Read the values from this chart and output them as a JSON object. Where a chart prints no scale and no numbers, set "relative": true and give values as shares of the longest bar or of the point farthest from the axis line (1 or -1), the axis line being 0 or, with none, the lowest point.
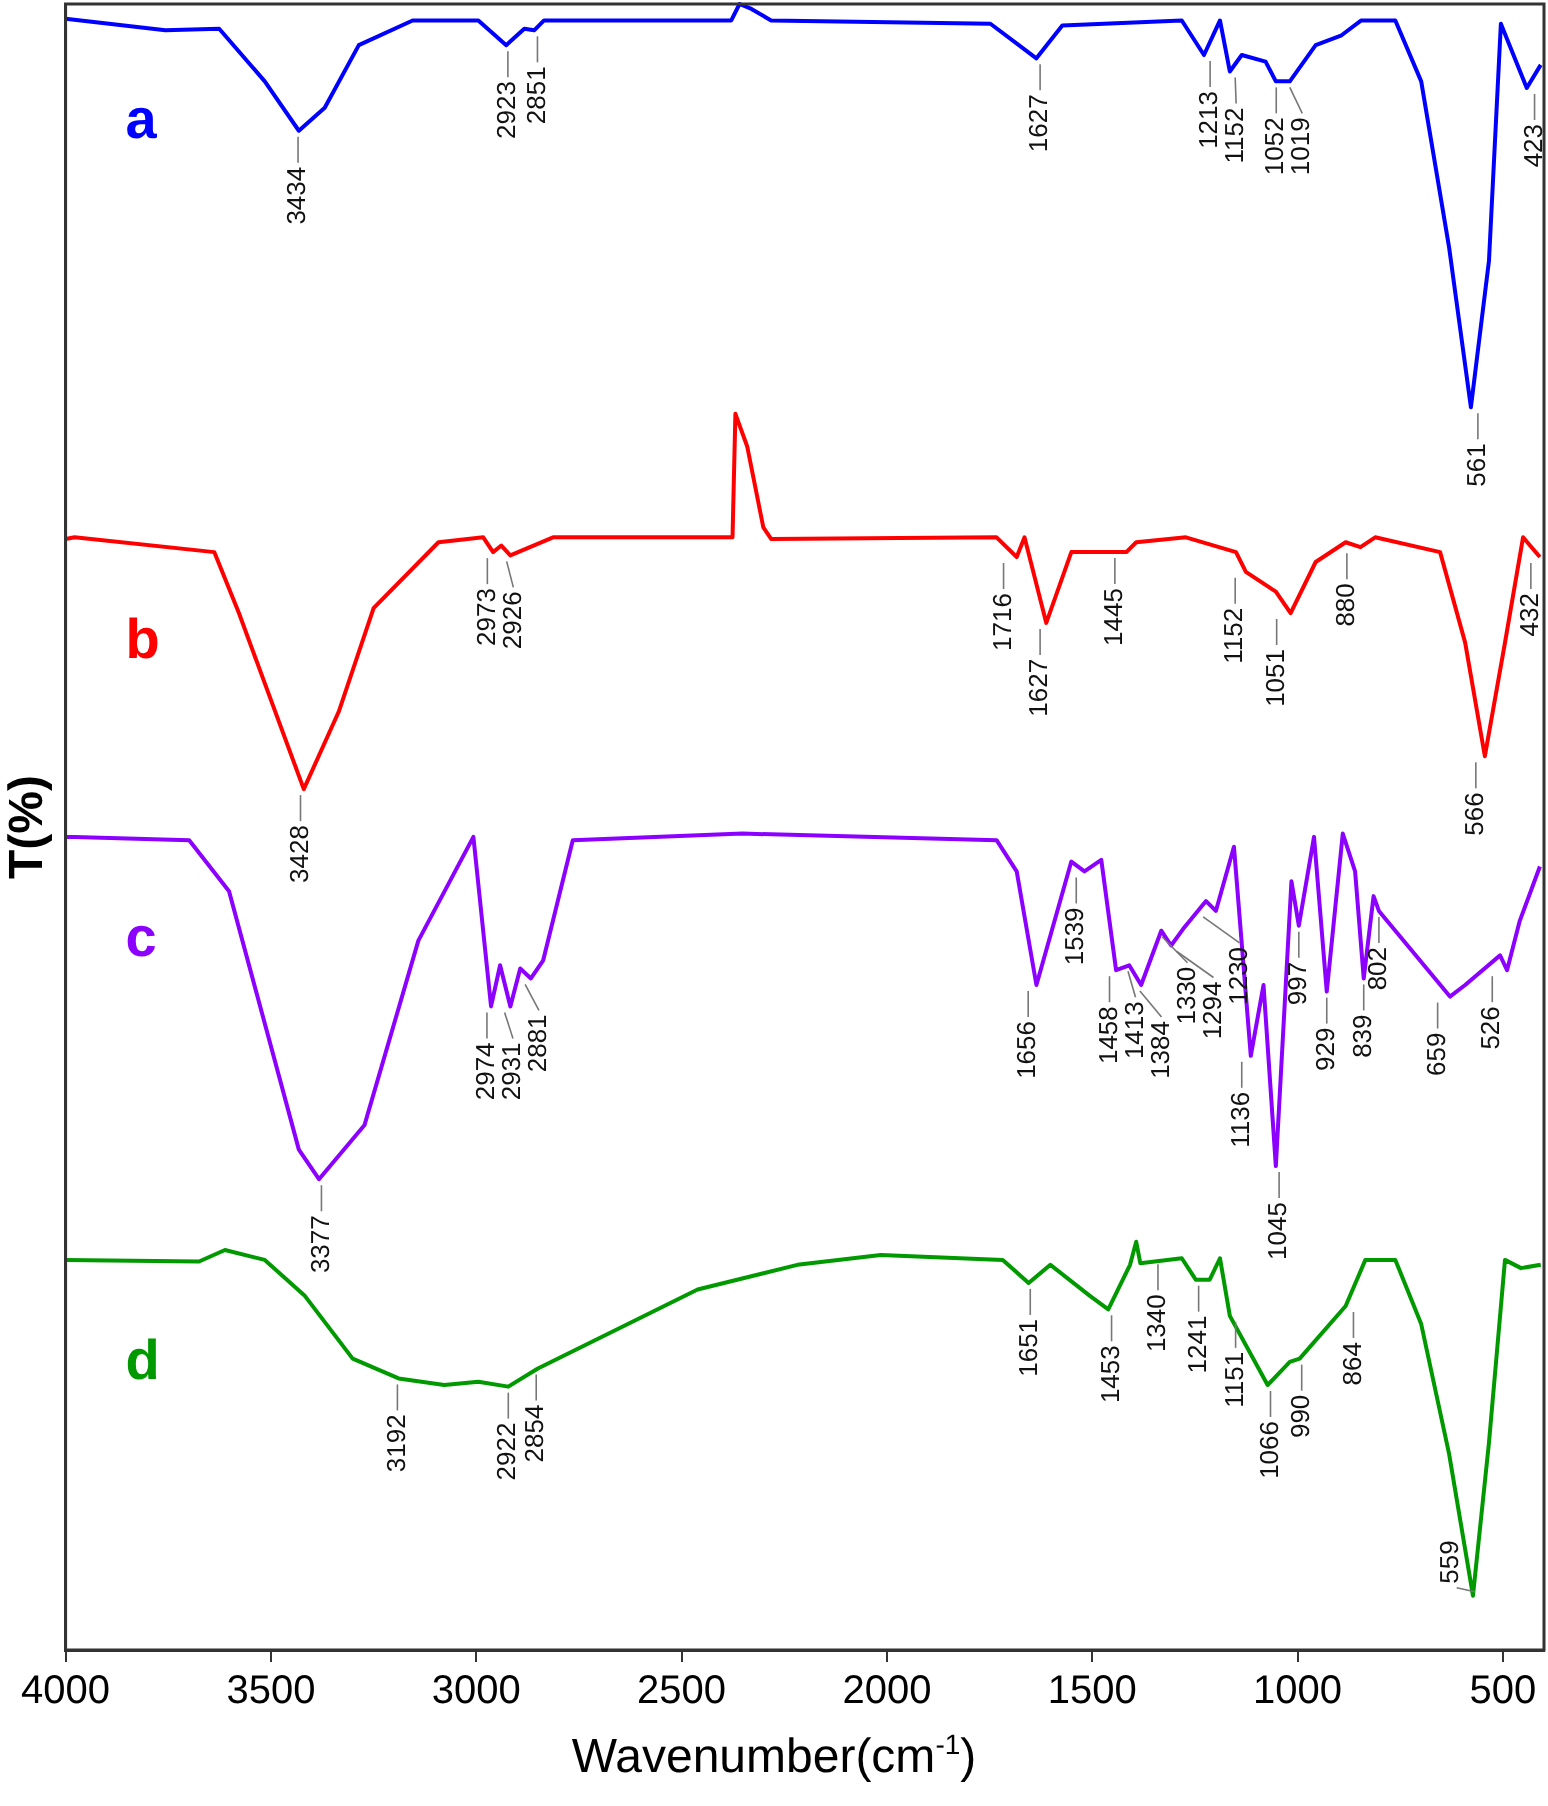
{
  "chart_data": {
    "type": "line",
    "relative": true,
    "xlabel": "Wavenumber(cm$^{-1}$)",
    "ylabel": "T(%)",
    "xlim": [
      4000,
      400
    ],
    "xticks": [
      4000,
      3500,
      3000,
      2500,
      2000,
      1500,
      1000,
      500
    ],
    "grid": false,
    "legend": false,
    "series": [
      {
        "name": "a",
        "color": "#0000ff",
        "x": [
          4000,
          3757,
          3626,
          3515,
          3432,
          3369,
          3286,
          3155,
          2995,
          2927,
          2883,
          2859,
          2835,
          2379,
          2359,
          2330,
          2282,
          1748,
          1636,
          1573,
          1282,
          1228,
          1189,
          1165,
          1136,
          1078,
          1053,
          1019,
          956,
          893,
          845,
          762,
          699,
          631,
          578,
          534,
          505,
          442,
          408
        ],
        "values": [
          0.991,
          0.984,
          0.985,
          0.953,
          0.923,
          0.937,
          0.975,
          0.99,
          0.99,
          0.975,
          0.985,
          0.984,
          0.99,
          0.99,
          1,
          0.997,
          0.99,
          0.988,
          0.967,
          0.987,
          0.99,
          0.969,
          0.99,
          0.959,
          0.969,
          0.965,
          0.953,
          0.953,
          0.975,
          0.981,
          0.99,
          0.99,
          0.953,
          0.852,
          0.755,
          0.844,
          0.988,
          0.949,
          0.963
        ]
      },
      {
        "name": "b",
        "color": "#ff0000",
        "x": [
          4000,
          3978,
          3638,
          3578,
          3420,
          3335,
          3250,
          3092,
          2983,
          2959,
          2939,
          2917,
          2813,
          2376,
          2369,
          2340,
          2301,
          2282,
          1733,
          1684,
          1665,
          1612,
          1551,
          1417,
          1393,
          1272,
          1150,
          1126,
          1053,
          1017,
          956,
          883,
          847,
          811,
          653,
          592,
          544,
          495,
          451,
          410
        ],
        "values": [
          0.675,
          0.676,
          0.667,
          0.63,
          0.523,
          0.57,
          0.633,
          0.673,
          0.676,
          0.667,
          0.671,
          0.665,
          0.676,
          0.676,
          0.751,
          0.731,
          0.682,
          0.675,
          0.676,
          0.664,
          0.676,
          0.624,
          0.667,
          0.667,
          0.673,
          0.676,
          0.667,
          0.655,
          0.643,
          0.63,
          0.661,
          0.673,
          0.67,
          0.676,
          0.667,
          0.612,
          0.543,
          0.612,
          0.676,
          0.664
        ]
      },
      {
        "name": "c",
        "color": "#8b00ff",
        "x": [
          4000,
          3978,
          3699,
          3602,
          3432,
          3383,
          3272,
          3141,
          3007,
          2964,
          2942,
          2917,
          2893,
          2867,
          2837,
          2765,
          2352,
          1733,
          1684,
          1636,
          1551,
          1519,
          1478,
          1442,
          1410,
          1381,
          1332,
          1308,
          1279,
          1223,
          1199,
          1155,
          1114,
          1083,
          1053,
          1015,
          997,
          960,
          929,
          890,
          860,
          839,
          815,
          802,
          629,
          592,
          507,
          490,
          459,
          410
        ],
        "values": [
          0.494,
          0.494,
          0.492,
          0.461,
          0.304,
          0.286,
          0.319,
          0.431,
          0.494,
          0.391,
          0.416,
          0.391,
          0.414,
          0.408,
          0.419,
          0.492,
          0.496,
          0.492,
          0.473,
          0.404,
          0.479,
          0.473,
          0.48,
          0.413,
          0.416,
          0.404,
          0.437,
          0.428,
          0.438,
          0.455,
          0.449,
          0.488,
          0.361,
          0.404,
          0.294,
          0.467,
          0.44,
          0.494,
          0.4,
          0.496,
          0.473,
          0.408,
          0.458,
          0.449,
          0.397,
          0.404,
          0.422,
          0.413,
          0.443,
          0.476
        ]
      },
      {
        "name": "d",
        "color": "#009900",
        "x": [
          4000,
          3675,
          3612,
          3515,
          3417,
          3301,
          3189,
          3078,
          2995,
          2922,
          2850,
          2461,
          2218,
          2015,
          1718,
          1655,
          1602,
          1505,
          1461,
          1408,
          1393,
          1383,
          1282,
          1248,
          1214,
          1189,
          1165,
          1073,
          1019,
          995,
          883,
          835,
          762,
          699,
          631,
          573,
          534,
          495,
          456,
          408
        ],
        "values": [
          0.237,
          0.236,
          0.243,
          0.237,
          0.215,
          0.177,
          0.165,
          0.161,
          0.163,
          0.16,
          0.171,
          0.219,
          0.234,
          0.24,
          0.237,
          0.223,
          0.234,
          0.215,
          0.207,
          0.234,
          0.248,
          0.235,
          0.238,
          0.225,
          0.225,
          0.238,
          0.203,
          0.161,
          0.175,
          0.177,
          0.209,
          0.237,
          0.237,
          0.198,
          0.119,
          0.033,
          0.126,
          0.237,
          0.232,
          0.234
        ]
      }
    ],
    "annotations": [
      {
        "text": "3434",
        "x": 3434,
        "y": 0.923
      },
      {
        "text": "2923",
        "x": 2923,
        "y": 0.975
      },
      {
        "text": "2851",
        "x": 2851,
        "y": 0.984
      },
      {
        "text": "1627",
        "x": 1627,
        "y": 0.967
      },
      {
        "text": "1213",
        "x": 1213,
        "y": 0.969
      },
      {
        "text": "1152",
        "x": 1152,
        "y": 0.959
      },
      {
        "text": "1052",
        "x": 1052,
        "y": 0.953
      },
      {
        "text": "1019",
        "x": 1019,
        "y": 0.953
      },
      {
        "text": "561",
        "x": 561,
        "y": 0.755
      },
      {
        "text": "423",
        "x": 423,
        "y": 0.949
      },
      {
        "text": "3428",
        "x": 3428,
        "y": 0.523
      },
      {
        "text": "2973",
        "x": 2973,
        "y": 0.667
      },
      {
        "text": "2926",
        "x": 2926,
        "y": 0.665
      },
      {
        "text": "1716",
        "x": 1716,
        "y": 0.664
      },
      {
        "text": "1627",
        "x": 1627,
        "y": 0.624
      },
      {
        "text": "1445",
        "x": 1445,
        "y": 0.667
      },
      {
        "text": "1152",
        "x": 1152,
        "y": 0.655
      },
      {
        "text": "1051",
        "x": 1051,
        "y": 0.63
      },
      {
        "text": "880",
        "x": 880,
        "y": 0.67
      },
      {
        "text": "566",
        "x": 566,
        "y": 0.543
      },
      {
        "text": "432",
        "x": 432,
        "y": 0.664
      },
      {
        "text": "3377",
        "x": 3377,
        "y": 0.286
      },
      {
        "text": "2974",
        "x": 2974,
        "y": 0.391
      },
      {
        "text": "2931",
        "x": 2931,
        "y": 0.391
      },
      {
        "text": "2881",
        "x": 2881,
        "y": 0.408
      },
      {
        "text": "1656",
        "x": 1656,
        "y": 0.404
      },
      {
        "text": "1539",
        "x": 1539,
        "y": 0.473
      },
      {
        "text": "1458",
        "x": 1458,
        "y": 0.413
      },
      {
        "text": "1413",
        "x": 1413,
        "y": 0.416
      },
      {
        "text": "1384",
        "x": 1384,
        "y": 0.404
      },
      {
        "text": "1330",
        "x": 1330,
        "y": 0.437
      },
      {
        "text": "1294",
        "x": 1294,
        "y": 0.428
      },
      {
        "text": "1230",
        "x": 1230,
        "y": 0.449
      },
      {
        "text": "1136",
        "x": 1136,
        "y": 0.361
      },
      {
        "text": "1045",
        "x": 1045,
        "y": 0.294
      },
      {
        "text": "997",
        "x": 997,
        "y": 0.44
      },
      {
        "text": "929",
        "x": 929,
        "y": 0.4
      },
      {
        "text": "839",
        "x": 839,
        "y": 0.408
      },
      {
        "text": "802",
        "x": 802,
        "y": 0.449
      },
      {
        "text": "659",
        "x": 659,
        "y": 0.397
      },
      {
        "text": "526",
        "x": 526,
        "y": 0.413
      },
      {
        "text": "3192",
        "x": 3192,
        "y": 0.165
      },
      {
        "text": "2922",
        "x": 2922,
        "y": 0.16
      },
      {
        "text": "2854",
        "x": 2854,
        "y": 0.171
      },
      {
        "text": "1651",
        "x": 1651,
        "y": 0.223
      },
      {
        "text": "1453",
        "x": 1453,
        "y": 0.207
      },
      {
        "text": "1340",
        "x": 1340,
        "y": 0.238
      },
      {
        "text": "1241",
        "x": 1241,
        "y": 0.225
      },
      {
        "text": "1151",
        "x": 1151,
        "y": 0.203
      },
      {
        "text": "1066",
        "x": 1066,
        "y": 0.161
      },
      {
        "text": "990",
        "x": 990,
        "y": 0.177
      },
      {
        "text": "864",
        "x": 864,
        "y": 0.209
      },
      {
        "text": "559",
        "x": 559,
        "y": 0.033
      }
    ]
  }
}
